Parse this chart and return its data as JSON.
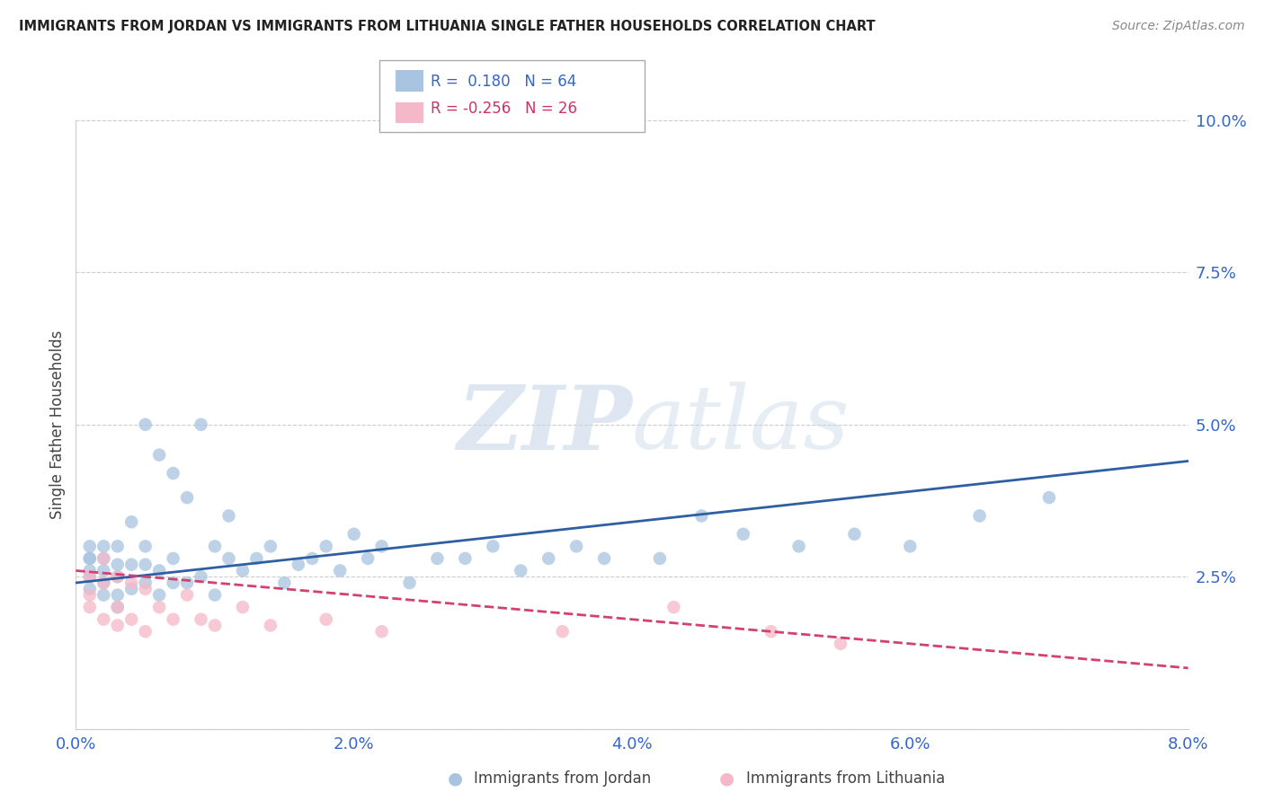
{
  "title": "IMMIGRANTS FROM JORDAN VS IMMIGRANTS FROM LITHUANIA SINGLE FATHER HOUSEHOLDS CORRELATION CHART",
  "source": "Source: ZipAtlas.com",
  "ylabel": "Single Father Households",
  "x_label_jordan": "Immigrants from Jordan",
  "x_label_lithuania": "Immigrants from Lithuania",
  "xlim": [
    0.0,
    0.08
  ],
  "ylim": [
    0.0,
    0.1
  ],
  "yticks": [
    0.0,
    0.025,
    0.05,
    0.075,
    0.1
  ],
  "ytick_labels": [
    "",
    "2.5%",
    "5.0%",
    "7.5%",
    "10.0%"
  ],
  "xticks": [
    0.0,
    0.02,
    0.04,
    0.06,
    0.08
  ],
  "xtick_labels": [
    "0.0%",
    "2.0%",
    "4.0%",
    "6.0%",
    "8.0%"
  ],
  "jordan_color": "#a8c4e0",
  "jordan_line_color": "#2e5fa3",
  "lithuania_color": "#f4b8c8",
  "lithuania_line_color": "#d44070",
  "R_jordan": 0.18,
  "N_jordan": 64,
  "R_lithuania": -0.256,
  "N_lithuania": 26,
  "watermark_zip": "ZIP",
  "watermark_atlas": "atlas",
  "jordan_scatter_x": [
    0.001,
    0.001,
    0.001,
    0.001,
    0.001,
    0.001,
    0.002,
    0.002,
    0.002,
    0.002,
    0.002,
    0.003,
    0.003,
    0.003,
    0.003,
    0.003,
    0.004,
    0.004,
    0.004,
    0.005,
    0.005,
    0.005,
    0.005,
    0.006,
    0.006,
    0.006,
    0.007,
    0.007,
    0.007,
    0.008,
    0.008,
    0.009,
    0.009,
    0.01,
    0.01,
    0.011,
    0.011,
    0.012,
    0.013,
    0.014,
    0.015,
    0.016,
    0.017,
    0.018,
    0.019,
    0.02,
    0.021,
    0.022,
    0.024,
    0.026,
    0.028,
    0.03,
    0.032,
    0.034,
    0.036,
    0.038,
    0.042,
    0.045,
    0.048,
    0.052,
    0.056,
    0.06,
    0.065,
    0.07
  ],
  "jordan_scatter_y": [
    0.023,
    0.025,
    0.026,
    0.028,
    0.028,
    0.03,
    0.022,
    0.024,
    0.026,
    0.028,
    0.03,
    0.02,
    0.022,
    0.025,
    0.027,
    0.03,
    0.023,
    0.027,
    0.034,
    0.024,
    0.027,
    0.03,
    0.05,
    0.022,
    0.026,
    0.045,
    0.024,
    0.028,
    0.042,
    0.024,
    0.038,
    0.025,
    0.05,
    0.022,
    0.03,
    0.028,
    0.035,
    0.026,
    0.028,
    0.03,
    0.024,
    0.027,
    0.028,
    0.03,
    0.026,
    0.032,
    0.028,
    0.03,
    0.024,
    0.028,
    0.028,
    0.03,
    0.026,
    0.028,
    0.03,
    0.028,
    0.028,
    0.035,
    0.032,
    0.03,
    0.032,
    0.03,
    0.035,
    0.038
  ],
  "lithuania_scatter_x": [
    0.001,
    0.001,
    0.001,
    0.002,
    0.002,
    0.002,
    0.003,
    0.003,
    0.003,
    0.004,
    0.004,
    0.005,
    0.005,
    0.006,
    0.007,
    0.008,
    0.009,
    0.01,
    0.012,
    0.014,
    0.018,
    0.022,
    0.035,
    0.043,
    0.05,
    0.055
  ],
  "lithuania_scatter_y": [
    0.025,
    0.022,
    0.02,
    0.028,
    0.024,
    0.018,
    0.025,
    0.02,
    0.017,
    0.024,
    0.018,
    0.023,
    0.016,
    0.02,
    0.018,
    0.022,
    0.018,
    0.017,
    0.02,
    0.017,
    0.018,
    0.016,
    0.016,
    0.02,
    0.016,
    0.014
  ]
}
